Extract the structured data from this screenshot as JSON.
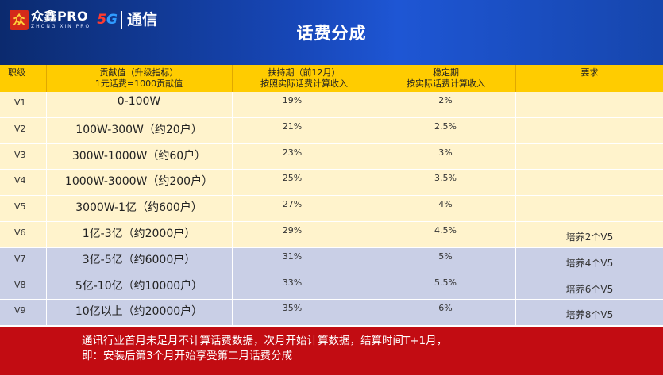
{
  "header": {
    "logo_mark": "众",
    "logo_main": "众鑫PRO",
    "logo_sub": "ZHONG XIN PRO",
    "logo_5g_a": "5",
    "logo_5g_b": "G",
    "brand": "通信",
    "title": "话费分成"
  },
  "columns": {
    "level": "职级",
    "value_line1": "贡献值（升级指标）",
    "value_line2": "1元话费=1000贡献值",
    "support_line1": "扶持期（前12月）",
    "support_line2": "按照实际话费计算收入",
    "stable_line1": "稳定期",
    "stable_line2": "按实际话费计算收入",
    "requirement": "要求"
  },
  "rows": [
    {
      "level": "V1",
      "value": "0-100W",
      "support": "19%",
      "stable": "2%",
      "requirement": ""
    },
    {
      "level": "V2",
      "value": "100W-300W（约20户）",
      "support": "21%",
      "stable": "2.5%",
      "requirement": ""
    },
    {
      "level": "V3",
      "value": "300W-1000W（约60户）",
      "support": "23%",
      "stable": "3%",
      "requirement": ""
    },
    {
      "level": "V4",
      "value": "1000W-3000W（约200户）",
      "support": "25%",
      "stable": "3.5%",
      "requirement": ""
    },
    {
      "level": "V5",
      "value": "3000W-1亿（约600户）",
      "support": "27%",
      "stable": "4%",
      "requirement": ""
    },
    {
      "level": "V6",
      "value": "1亿-3亿（约2000户）",
      "support": "29%",
      "stable": "4.5%",
      "requirement": "培养2个V5"
    },
    {
      "level": "V7",
      "value": "3亿-5亿（约6000户）",
      "support": "31%",
      "stable": "5%",
      "requirement": "培养4个V5"
    },
    {
      "level": "V8",
      "value": "5亿-10亿（约10000户）",
      "support": "33%",
      "stable": "5.5%",
      "requirement": "培养6个V5"
    },
    {
      "level": "V9",
      "value": "10亿以上（约20000户）",
      "support": "35%",
      "stable": "6%",
      "requirement": "培养8个V5"
    }
  ],
  "footer": {
    "line1": "通讯行业首月未足月不计算话费数据，次月开始计算数据，结算时间T+1月，",
    "line2": "即：安装后第3个月开始享受第二月话费分成"
  },
  "colors": {
    "header_blue": "#1747b8",
    "header_yellow": "#ffcc00",
    "row_cream": "#fff3cc",
    "row_blue": "#c9cfe6",
    "footer_red": "#c20c12"
  }
}
